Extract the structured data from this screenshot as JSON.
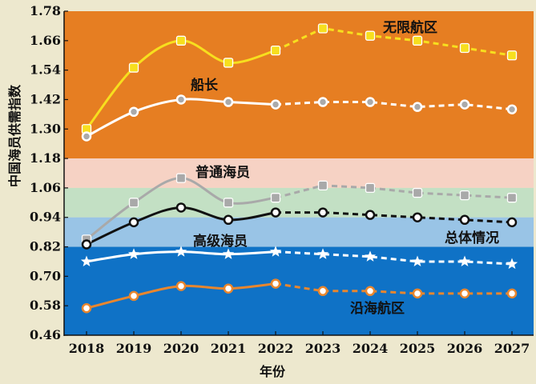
{
  "chart_data": {
    "type": "line",
    "xlabel": "年份",
    "ylabel": "中国海员供需指数",
    "x": [
      "2018",
      "2019",
      "2020",
      "2021",
      "2022",
      "2023",
      "2024",
      "2025",
      "2026",
      "2027"
    ],
    "ylim": [
      0.46,
      1.78
    ],
    "yticks": [
      "1.78",
      "1.66",
      "1.54",
      "1.42",
      "1.30",
      "1.18",
      "1.06",
      "0.94",
      "0.82",
      "0.70",
      "0.58",
      "0.46"
    ],
    "bands": [
      {
        "name": "unlimited-zone",
        "from": 1.18,
        "to": 1.78,
        "color": "#e67e22"
      },
      {
        "name": "pink-zone",
        "from": 1.06,
        "to": 1.18,
        "color": "#f6d2c4"
      },
      {
        "name": "green-zone",
        "from": 0.94,
        "to": 1.06,
        "color": "#c3e0c4"
      },
      {
        "name": "lightblue-zone",
        "from": 0.82,
        "to": 0.94,
        "color": "#99c4e6"
      },
      {
        "name": "blue-zone",
        "from": 0.46,
        "to": 0.82,
        "color": "#0f72c6"
      }
    ],
    "forecast_from_index": 4,
    "series": [
      {
        "name": "无限航区",
        "color": "#f7df1e",
        "marker": "square",
        "values": [
          1.3,
          1.55,
          1.66,
          1.57,
          1.62,
          1.71,
          1.68,
          1.66,
          1.63,
          1.6
        ]
      },
      {
        "name": "船长",
        "color": "#ffffff",
        "marker": "circle",
        "fill": "#aaaaaa",
        "values": [
          1.27,
          1.37,
          1.42,
          1.41,
          1.4,
          1.41,
          1.41,
          1.39,
          1.4,
          1.38
        ]
      },
      {
        "name": "普通海员",
        "color": "#a9a9a9",
        "marker": "square",
        "values": [
          0.85,
          1.0,
          1.1,
          1.0,
          1.02,
          1.07,
          1.06,
          1.04,
          1.03,
          1.02
        ]
      },
      {
        "name": "总体情况",
        "color": "#111111",
        "marker": "circle",
        "fill": "#ffffff",
        "values": [
          0.83,
          0.92,
          0.98,
          0.93,
          0.96,
          0.96,
          0.95,
          0.94,
          0.93,
          0.92
        ]
      },
      {
        "name": "高级海员",
        "color": "#ffffff",
        "marker": "star",
        "values": [
          0.76,
          0.79,
          0.8,
          0.79,
          0.8,
          0.79,
          0.78,
          0.76,
          0.76,
          0.75
        ]
      },
      {
        "name": "沿海航区",
        "color": "#e8862e",
        "marker": "circle",
        "fill": "#ffffff",
        "values": [
          0.57,
          0.62,
          0.66,
          0.65,
          0.67,
          0.64,
          0.64,
          0.63,
          0.63,
          0.63
        ]
      }
    ]
  }
}
